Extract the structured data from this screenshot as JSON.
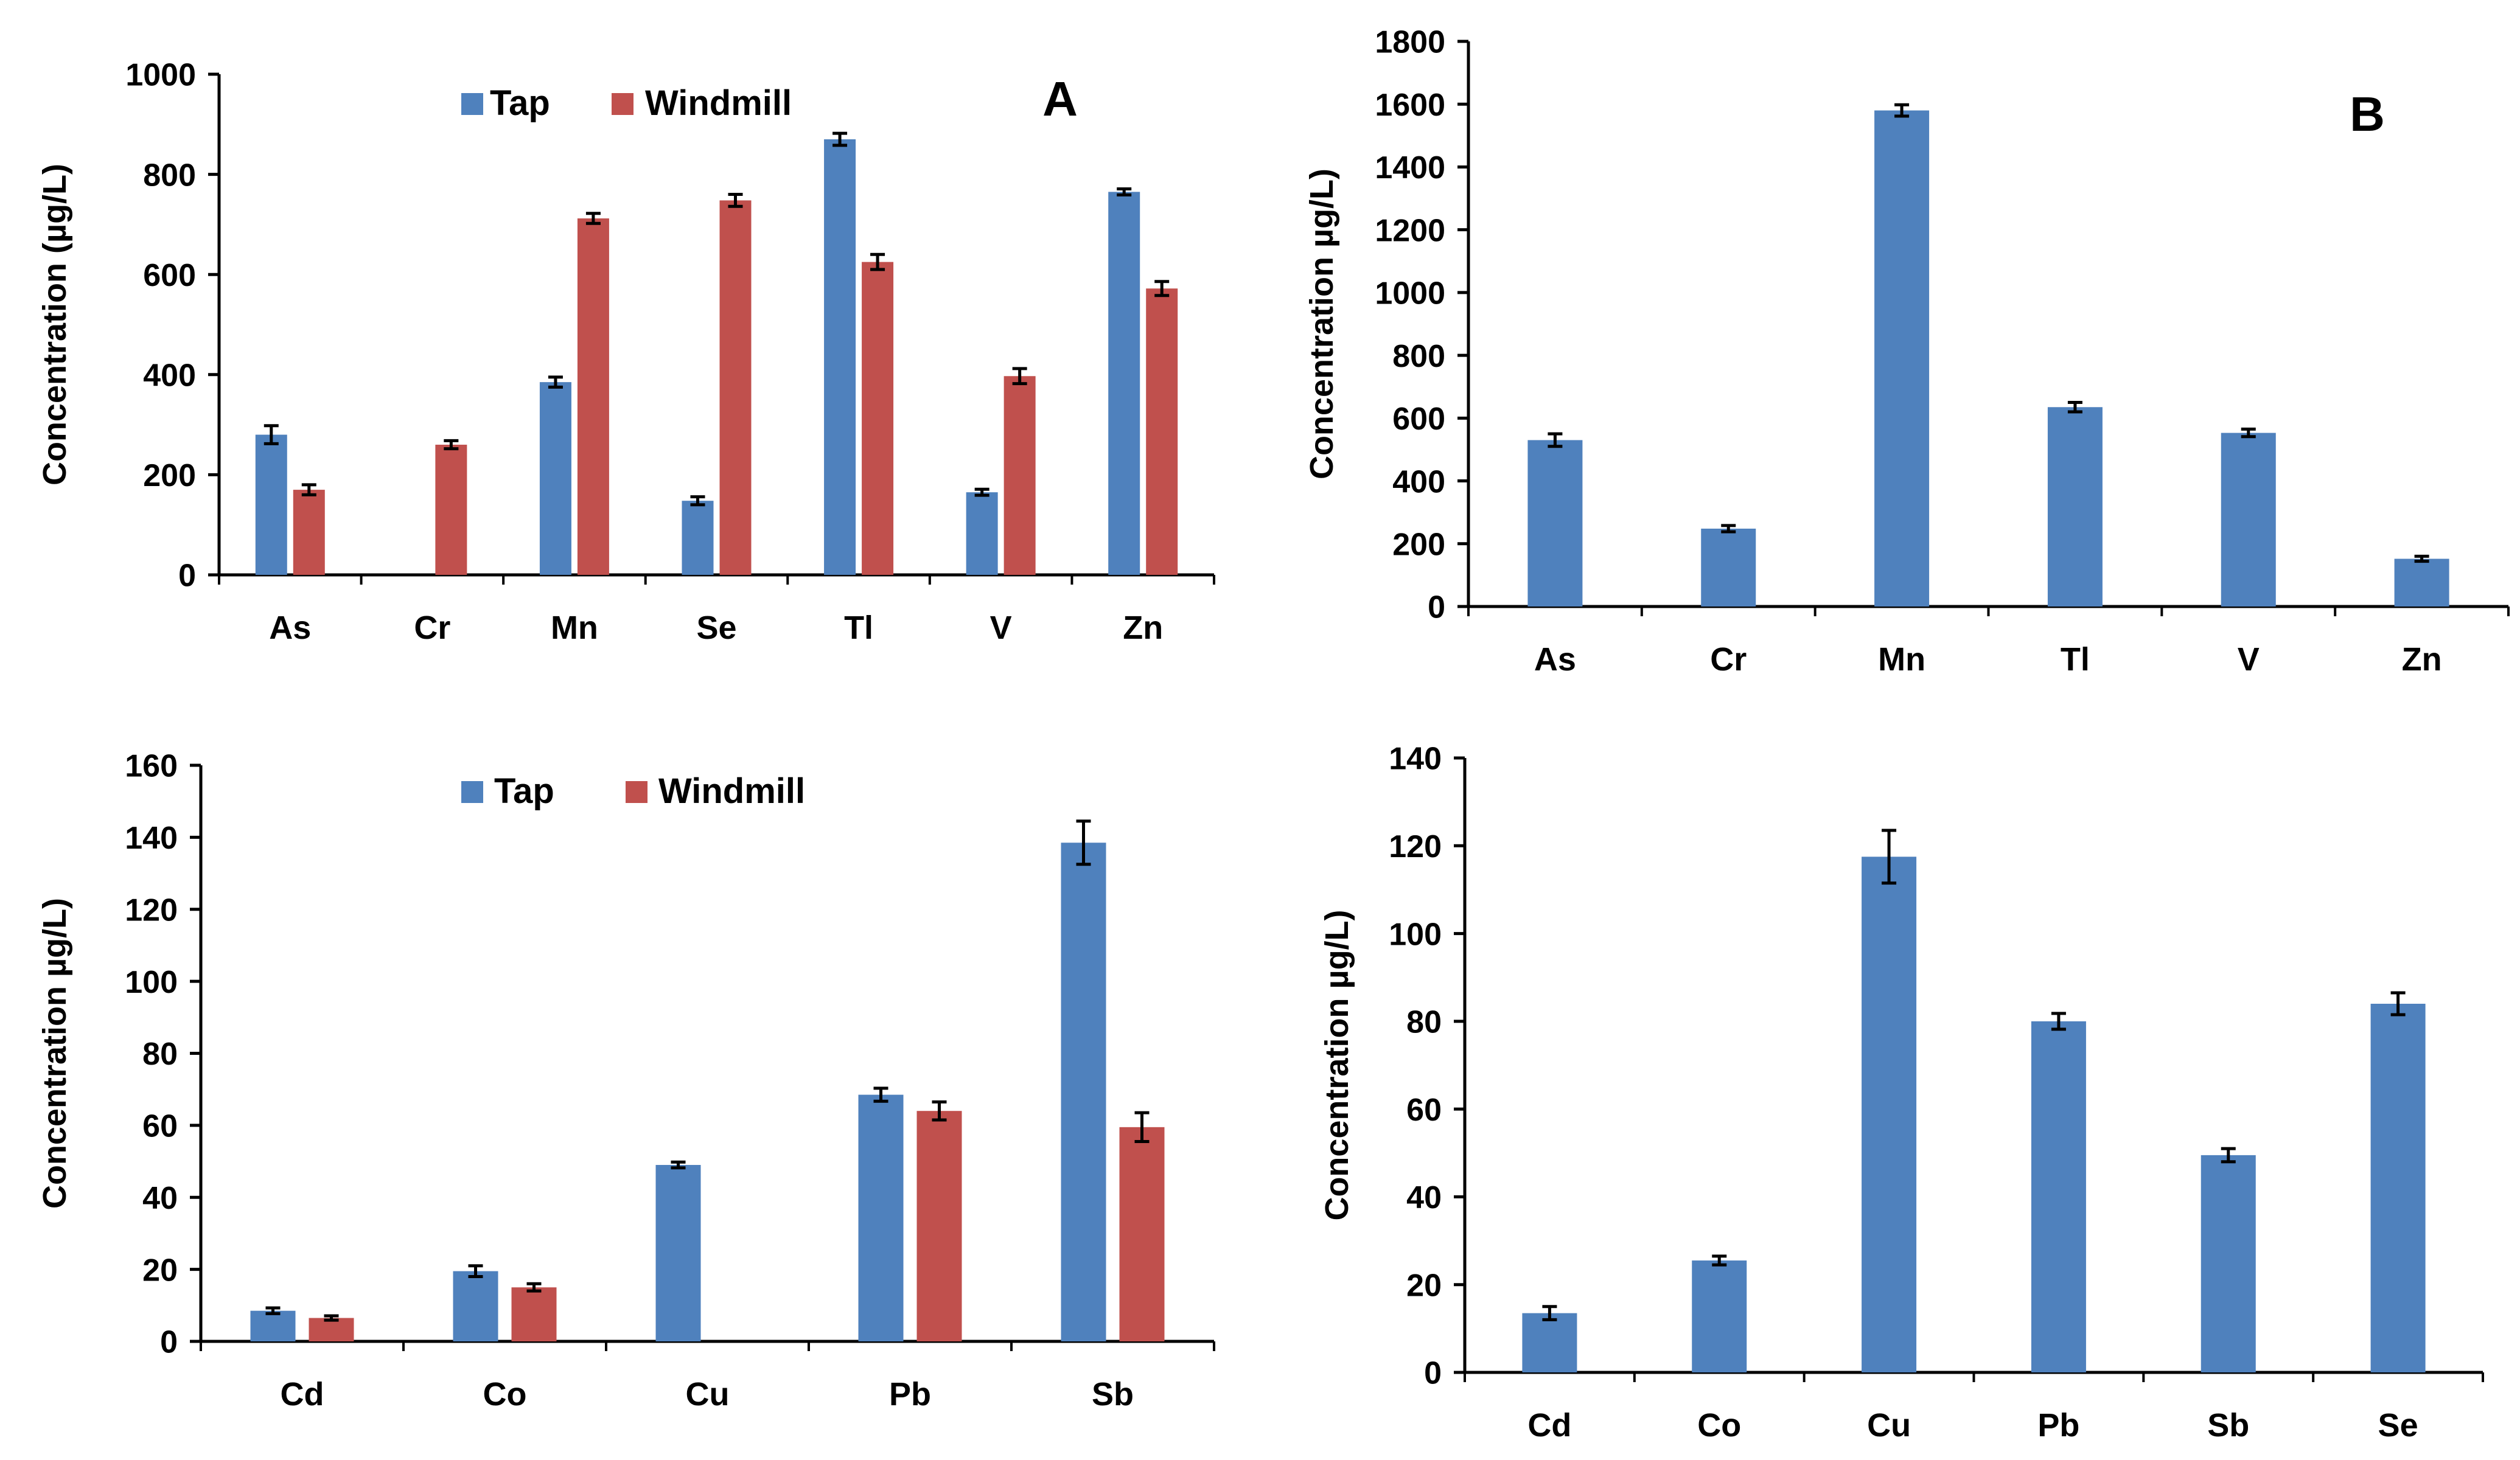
{
  "panel_letters": {
    "a": "A",
    "b": "B"
  },
  "colors": {
    "tap": "#4F81BD",
    "windmill": "#C0504D",
    "axis": "#000000",
    "error": "#000000"
  },
  "chart_data": [
    {
      "id": "top-left",
      "type": "bar",
      "ylabel": "Concentration (µg/L)",
      "xlabel": "",
      "ylim": [
        0,
        1000
      ],
      "yticks": [
        0,
        200,
        400,
        600,
        800,
        1000
      ],
      "categories": [
        "As",
        "Cr",
        "Mn",
        "Se",
        "Tl",
        "V",
        "Zn"
      ],
      "legend": [
        "Tap",
        "Windmill"
      ],
      "legend_position": "top-center",
      "series": [
        {
          "name": "Tap",
          "color": "#4F81BD",
          "values": [
            280,
            null,
            385,
            148,
            870,
            165,
            765
          ],
          "errors": [
            18,
            null,
            10,
            8,
            12,
            6,
            6
          ]
        },
        {
          "name": "Windmill",
          "color": "#C0504D",
          "values": [
            170,
            260,
            712,
            748,
            625,
            397,
            572
          ],
          "errors": [
            10,
            8,
            10,
            12,
            15,
            15,
            14
          ]
        }
      ]
    },
    {
      "id": "top-right",
      "type": "bar",
      "ylabel": "Concentration µg/L)",
      "xlabel": "",
      "ylim": [
        0,
        1800
      ],
      "yticks": [
        0,
        200,
        400,
        600,
        800,
        1000,
        1200,
        1400,
        1600,
        1800
      ],
      "categories": [
        "As",
        "Cr",
        "Mn",
        "Tl",
        "V",
        "Zn"
      ],
      "series": [
        {
          "name": "Tap",
          "color": "#4F81BD",
          "values": [
            530,
            248,
            1580,
            635,
            553,
            152
          ],
          "errors": [
            20,
            10,
            18,
            15,
            12,
            8
          ]
        }
      ]
    },
    {
      "id": "bottom-left",
      "type": "bar",
      "ylabel": "Concentration µg/L)",
      "xlabel": "",
      "ylim": [
        0,
        160
      ],
      "yticks": [
        0,
        20,
        40,
        60,
        80,
        100,
        120,
        140,
        160
      ],
      "categories": [
        "Cd",
        "Co",
        "Cu",
        "Pb",
        "Sb"
      ],
      "legend": [
        "Tap",
        "Windmill"
      ],
      "legend_position": "top-center",
      "series": [
        {
          "name": "Tap",
          "color": "#4F81BD",
          "values": [
            8.5,
            19.5,
            49,
            68.5,
            138.5
          ],
          "errors": [
            0.8,
            1.5,
            0.8,
            1.8,
            6
          ]
        },
        {
          "name": "Windmill",
          "color": "#C0504D",
          "values": [
            6.5,
            15,
            null,
            64,
            59.5
          ],
          "errors": [
            0.6,
            1.0,
            null,
            2.5,
            4
          ]
        }
      ]
    },
    {
      "id": "bottom-right",
      "type": "bar",
      "ylabel": "Concentration µg/L)",
      "xlabel": "",
      "ylim": [
        0,
        140
      ],
      "yticks": [
        0,
        20,
        40,
        60,
        80,
        100,
        120,
        140
      ],
      "categories": [
        "Cd",
        "Co",
        "Cu",
        "Pb",
        "Sb",
        "Se"
      ],
      "series": [
        {
          "name": "Tap",
          "color": "#4F81BD",
          "values": [
            13.5,
            25.5,
            117.5,
            80,
            49.5,
            84
          ],
          "errors": [
            1.5,
            1.0,
            6,
            1.8,
            1.5,
            2.5
          ]
        }
      ]
    }
  ]
}
